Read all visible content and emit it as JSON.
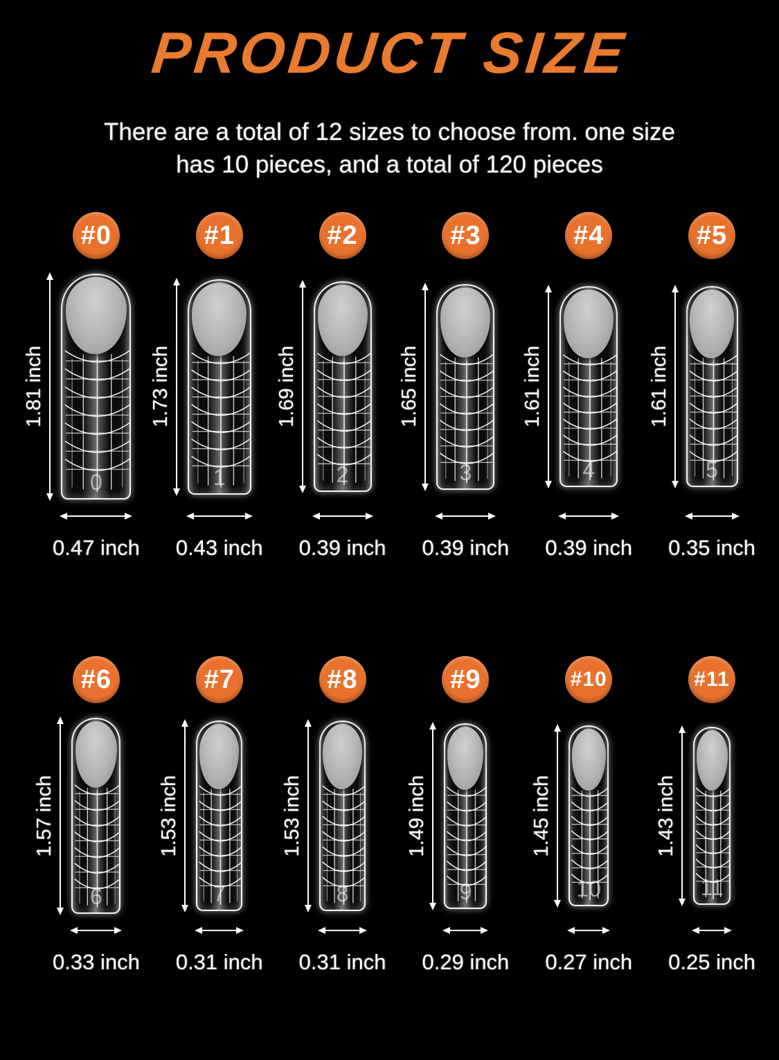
{
  "page": {
    "background": "#000000",
    "accent_orange": "#E8722D",
    "title_color": "#E87B30",
    "text_color": "#FFFFFF"
  },
  "header": {
    "title": "PRODUCT SIZE",
    "subtitle_line1": "There are a total of 12 sizes to choose from. one size",
    "subtitle_line2": "has 10 pieces, and a total of 120 pieces"
  },
  "unit": "inch",
  "rows": [
    {
      "items": [
        {
          "badge": "#0",
          "tip_number": "0",
          "height_inch": 1.81,
          "width_inch": 0.47,
          "height_label": "1.81 inch",
          "width_label": "0.47 inch"
        },
        {
          "badge": "#1",
          "tip_number": "1",
          "height_inch": 1.73,
          "width_inch": 0.43,
          "height_label": "1.73 inch",
          "width_label": "0.43 inch"
        },
        {
          "badge": "#2",
          "tip_number": "2",
          "height_inch": 1.69,
          "width_inch": 0.39,
          "height_label": "1.69 inch",
          "width_label": "0.39 inch"
        },
        {
          "badge": "#3",
          "tip_number": "3",
          "height_inch": 1.65,
          "width_inch": 0.39,
          "height_label": "1.65 inch",
          "width_label": "0.39 inch"
        },
        {
          "badge": "#4",
          "tip_number": "4",
          "height_inch": 1.61,
          "width_inch": 0.39,
          "height_label": "1.61 inch",
          "width_label": "0.39 inch"
        },
        {
          "badge": "#5",
          "tip_number": "5",
          "height_inch": 1.61,
          "width_inch": 0.35,
          "height_label": "1.61 inch",
          "width_label": "0.35 inch"
        }
      ]
    },
    {
      "items": [
        {
          "badge": "#6",
          "tip_number": "6",
          "height_inch": 1.57,
          "width_inch": 0.33,
          "height_label": "1.57 inch",
          "width_label": "0.33 inch"
        },
        {
          "badge": "#7",
          "tip_number": "7",
          "height_inch": 1.53,
          "width_inch": 0.31,
          "height_label": "1.53 inch",
          "width_label": "0.31 inch"
        },
        {
          "badge": "#8",
          "tip_number": "8",
          "height_inch": 1.53,
          "width_inch": 0.31,
          "height_label": "1.53 inch",
          "width_label": "0.31 inch"
        },
        {
          "badge": "#9",
          "tip_number": "9",
          "height_inch": 1.49,
          "width_inch": 0.29,
          "height_label": "1.49 inch",
          "width_label": "0.29 inch"
        },
        {
          "badge": "#10",
          "tip_number": "10",
          "height_inch": 1.45,
          "width_inch": 0.27,
          "height_label": "1.45 inch",
          "width_label": "0.27 inch"
        },
        {
          "badge": "#11",
          "tip_number": "11",
          "height_inch": 1.43,
          "width_inch": 0.25,
          "height_label": "1.43 inch",
          "width_label": "0.25 inch"
        }
      ]
    }
  ]
}
